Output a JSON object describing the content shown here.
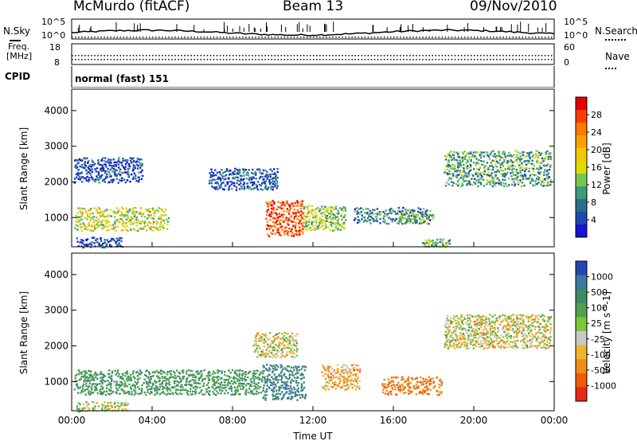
{
  "header": {
    "station": "McMurdo (fitACF)",
    "beam": "Beam 13",
    "date": "09/Nov/2010"
  },
  "strip_panels": {
    "nsky_label": "N.Sky",
    "nsky_ticks": [
      "10^5",
      "10^0"
    ],
    "nsearch_label": "N.Search",
    "freq_label_line1": "Freq.",
    "freq_label_line2": "[MHz]",
    "freq_ticks": [
      "18",
      "8"
    ],
    "nave_label": "Nave",
    "nave_ticks": [
      "60",
      "0"
    ],
    "cpid_label": "CPID",
    "cpid_value": "normal (fast) 151"
  },
  "chart_data": [
    {
      "type": "heatmap",
      "title": "",
      "ylabel": "Slant Range [km]",
      "xlabel": "",
      "x_ticks": [
        "00:00",
        "04:00",
        "08:00",
        "12:00",
        "16:00",
        "20:00",
        "00:00"
      ],
      "y_ticks": [
        1000,
        2000,
        3000,
        4000
      ],
      "ylim": [
        180,
        4600
      ],
      "colorbar": {
        "label": "Power [dB]",
        "ticks": [
          "28",
          "24",
          "20",
          "16",
          "12",
          "8",
          "4"
        ],
        "colors": [
          "#e60000",
          "#ff3c00",
          "#ff7800",
          "#ffa000",
          "#f0c800",
          "#dcdc00",
          "#78c850",
          "#3c9c78",
          "#2a6e8c",
          "#1e46b4",
          "#1414d2"
        ]
      },
      "regions": [
        {
          "t_start": 0.1,
          "t_end": 4.8,
          "range_min": 650,
          "range_max": 1300,
          "power": 16
        },
        {
          "t_start": 9.6,
          "t_end": 11.5,
          "range_min": 500,
          "range_max": 1500,
          "power": 26
        },
        {
          "t_start": 11.5,
          "t_end": 13.6,
          "range_min": 650,
          "range_max": 1350,
          "power": 14
        },
        {
          "t_start": 14.0,
          "t_end": 17.8,
          "range_min": 850,
          "range_max": 1300,
          "power": 9
        },
        {
          "t_start": 16.2,
          "t_end": 18.0,
          "range_min": 850,
          "range_max": 1150,
          "power": 13
        },
        {
          "t_start": 18.5,
          "t_end": 23.8,
          "range_min": 1900,
          "range_max": 2900,
          "power": 11
        },
        {
          "t_start": 6.8,
          "t_end": 10.2,
          "range_min": 1800,
          "range_max": 2400,
          "power": 7
        },
        {
          "t_start": 0.1,
          "t_end": 3.5,
          "range_min": 2000,
          "range_max": 2700,
          "power": 6
        },
        {
          "t_start": 17.4,
          "t_end": 18.8,
          "range_min": 200,
          "range_max": 420,
          "power": 12
        },
        {
          "t_start": 0.2,
          "t_end": 2.5,
          "range_min": 180,
          "range_max": 460,
          "power": 6
        }
      ]
    },
    {
      "type": "heatmap",
      "title": "",
      "ylabel": "Slant Range [km]",
      "xlabel": "Time UT",
      "x_ticks": [
        "00:00",
        "04:00",
        "08:00",
        "12:00",
        "16:00",
        "20:00",
        "00:00"
      ],
      "y_ticks": [
        1000,
        2000,
        3000,
        4000
      ],
      "ylim": [
        180,
        4600
      ],
      "colorbar": {
        "label": "Velocity [m s^-1]",
        "ticks": [
          "1000",
          "500",
          "100",
          "25",
          "-25",
          "-100",
          "-500",
          "-1000"
        ],
        "colors": [
          "#2346b4",
          "#3c78a0",
          "#3c8c64",
          "#50a050",
          "#78c83c",
          "#c8c8c8",
          "#f0b428",
          "#f08c14",
          "#f05a0a",
          "#e62814"
        ]
      },
      "regions": [
        {
          "t_start": 0.1,
          "t_end": 9.4,
          "range_min": 650,
          "range_max": 1350,
          "velocity": 300
        },
        {
          "t_start": 9.4,
          "t_end": 11.6,
          "range_min": 500,
          "range_max": 1500,
          "velocity": 500
        },
        {
          "t_start": 12.4,
          "t_end": 14.3,
          "range_min": 800,
          "range_max": 1500,
          "velocity": -120
        },
        {
          "t_start": 15.4,
          "t_end": 18.4,
          "range_min": 650,
          "range_max": 1150,
          "velocity": -250
        },
        {
          "t_start": 18.5,
          "t_end": 23.8,
          "range_min": 1950,
          "range_max": 2900,
          "velocity": 0
        },
        {
          "t_start": 9.0,
          "t_end": 11.2,
          "range_min": 1700,
          "range_max": 2400,
          "velocity": 0
        },
        {
          "t_start": 0.2,
          "t_end": 2.8,
          "range_min": 180,
          "range_max": 460,
          "velocity": 10
        }
      ]
    }
  ]
}
